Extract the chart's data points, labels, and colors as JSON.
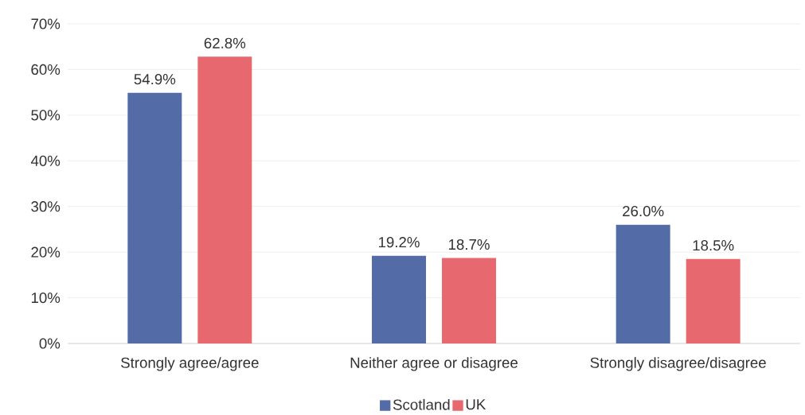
{
  "chart_data": {
    "type": "bar",
    "categories": [
      "Strongly agree/agree",
      "Neither agree or disagree",
      "Strongly disagree/disagree"
    ],
    "series": [
      {
        "name": "Scotland",
        "color": "#536ca8",
        "values": [
          54.9,
          19.2,
          26.0
        ],
        "value_labels": [
          "54.9%",
          "19.2%",
          "26.0%"
        ]
      },
      {
        "name": "UK",
        "color": "#e8686f",
        "values": [
          62.8,
          18.7,
          18.5
        ],
        "value_labels": [
          "62.8%",
          "18.7%",
          "18.5%"
        ]
      }
    ],
    "ylim": [
      0,
      70
    ],
    "yticks": [
      {
        "value": 0,
        "label": "0%"
      },
      {
        "value": 10,
        "label": "10%"
      },
      {
        "value": 20,
        "label": "20%"
      },
      {
        "value": 30,
        "label": "30%"
      },
      {
        "value": 40,
        "label": "40%"
      },
      {
        "value": 50,
        "label": "50%"
      },
      {
        "value": 60,
        "label": "60%"
      },
      {
        "value": 70,
        "label": "70%"
      }
    ],
    "grid": "y",
    "legend": "bottom"
  }
}
